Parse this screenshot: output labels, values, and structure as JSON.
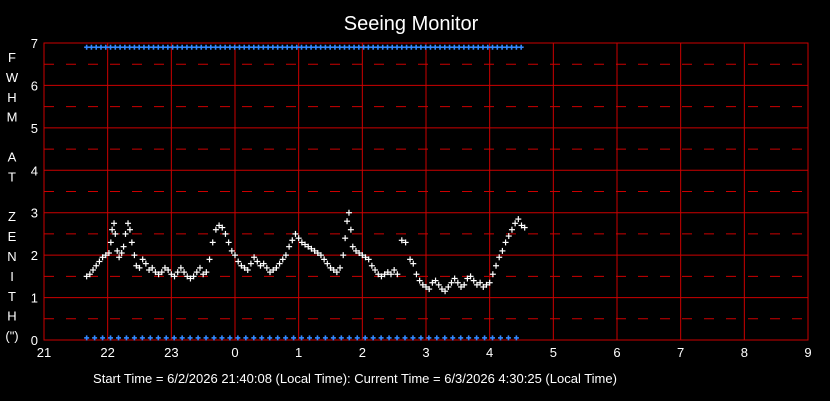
{
  "chart_data": {
    "type": "scatter",
    "title": "Seeing Monitor",
    "ylabel_letters": [
      "F",
      "W",
      "H",
      "M",
      "",
      "A",
      "T",
      "",
      "Z",
      "E",
      "N",
      "I",
      "T",
      "H",
      "(\")"
    ],
    "footer": "Start Time = 6/2/2026 21:40:08 (Local Time): Current Time = 6/3/2026 4:30:25 (Local Time)",
    "xlim": [
      21,
      33
    ],
    "ylim": [
      0,
      7
    ],
    "x_tick_values": [
      21,
      22,
      23,
      24,
      25,
      26,
      27,
      28,
      29,
      30,
      31,
      32,
      33
    ],
    "x_tick_labels": [
      "21",
      "22",
      "23",
      "0",
      "1",
      "2",
      "3",
      "4",
      "5",
      "6",
      "7",
      "8",
      "9"
    ],
    "y_ticks": [
      "0",
      "1",
      "2",
      "3",
      "4",
      "5",
      "6",
      "7"
    ],
    "grid": true,
    "colors": {
      "background": "#000000",
      "grid": "#cc0000",
      "data": "#ffffff",
      "status": "#3388ff"
    },
    "series": [
      {
        "marker": "plus",
        "points": [
          [
            21.67,
            1.5
          ],
          [
            21.72,
            1.55
          ],
          [
            21.77,
            1.65
          ],
          [
            21.82,
            1.75
          ],
          [
            21.87,
            1.85
          ],
          [
            21.92,
            1.95
          ],
          [
            21.97,
            2.0
          ],
          [
            22.02,
            2.05
          ],
          [
            22.05,
            2.3
          ],
          [
            22.07,
            2.6
          ],
          [
            22.1,
            2.75
          ],
          [
            22.12,
            2.5
          ],
          [
            22.15,
            2.1
          ],
          [
            22.18,
            1.95
          ],
          [
            22.22,
            2.05
          ],
          [
            22.25,
            2.2
          ],
          [
            22.28,
            2.5
          ],
          [
            22.32,
            2.75
          ],
          [
            22.35,
            2.6
          ],
          [
            22.38,
            2.3
          ],
          [
            22.42,
            2.0
          ],
          [
            22.45,
            1.75
          ],
          [
            22.5,
            1.7
          ],
          [
            22.55,
            1.9
          ],
          [
            22.6,
            1.8
          ],
          [
            22.65,
            1.65
          ],
          [
            22.7,
            1.7
          ],
          [
            22.75,
            1.6
          ],
          [
            22.8,
            1.55
          ],
          [
            22.85,
            1.6
          ],
          [
            22.9,
            1.7
          ],
          [
            22.95,
            1.65
          ],
          [
            23.0,
            1.55
          ],
          [
            23.05,
            1.5
          ],
          [
            23.1,
            1.6
          ],
          [
            23.15,
            1.7
          ],
          [
            23.2,
            1.6
          ],
          [
            23.25,
            1.5
          ],
          [
            23.3,
            1.45
          ],
          [
            23.35,
            1.5
          ],
          [
            23.4,
            1.6
          ],
          [
            23.45,
            1.7
          ],
          [
            23.5,
            1.55
          ],
          [
            23.55,
            1.6
          ],
          [
            23.6,
            1.9
          ],
          [
            23.65,
            2.3
          ],
          [
            23.7,
            2.6
          ],
          [
            23.75,
            2.7
          ],
          [
            23.8,
            2.65
          ],
          [
            23.85,
            2.5
          ],
          [
            23.9,
            2.3
          ],
          [
            23.95,
            2.1
          ],
          [
            24.0,
            2.0
          ],
          [
            24.05,
            1.85
          ],
          [
            24.1,
            1.75
          ],
          [
            24.15,
            1.7
          ],
          [
            24.2,
            1.65
          ],
          [
            24.25,
            1.8
          ],
          [
            24.3,
            1.95
          ],
          [
            24.35,
            1.85
          ],
          [
            24.4,
            1.75
          ],
          [
            24.45,
            1.8
          ],
          [
            24.5,
            1.7
          ],
          [
            24.55,
            1.6
          ],
          [
            24.6,
            1.65
          ],
          [
            24.65,
            1.7
          ],
          [
            24.7,
            1.8
          ],
          [
            24.75,
            1.9
          ],
          [
            24.8,
            2.0
          ],
          [
            24.85,
            2.2
          ],
          [
            24.9,
            2.35
          ],
          [
            24.95,
            2.5
          ],
          [
            25.0,
            2.4
          ],
          [
            25.05,
            2.3
          ],
          [
            25.1,
            2.25
          ],
          [
            25.15,
            2.2
          ],
          [
            25.2,
            2.15
          ],
          [
            25.25,
            2.1
          ],
          [
            25.3,
            2.05
          ],
          [
            25.35,
            2.0
          ],
          [
            25.4,
            1.9
          ],
          [
            25.45,
            1.8
          ],
          [
            25.5,
            1.7
          ],
          [
            25.55,
            1.65
          ],
          [
            25.6,
            1.6
          ],
          [
            25.65,
            1.7
          ],
          [
            25.7,
            2.0
          ],
          [
            25.73,
            2.4
          ],
          [
            25.76,
            2.8
          ],
          [
            25.79,
            3.0
          ],
          [
            25.82,
            2.6
          ],
          [
            25.85,
            2.2
          ],
          [
            25.9,
            2.1
          ],
          [
            25.95,
            2.05
          ],
          [
            26.0,
            2.0
          ],
          [
            26.05,
            1.95
          ],
          [
            26.1,
            1.9
          ],
          [
            26.15,
            1.75
          ],
          [
            26.2,
            1.65
          ],
          [
            26.25,
            1.55
          ],
          [
            26.3,
            1.5
          ],
          [
            26.35,
            1.55
          ],
          [
            26.4,
            1.6
          ],
          [
            26.45,
            1.55
          ],
          [
            26.5,
            1.65
          ],
          [
            26.55,
            1.55
          ],
          [
            26.62,
            2.35
          ],
          [
            26.68,
            2.3
          ],
          [
            26.75,
            1.9
          ],
          [
            26.8,
            1.8
          ],
          [
            26.85,
            1.55
          ],
          [
            26.9,
            1.4
          ],
          [
            26.95,
            1.3
          ],
          [
            27.0,
            1.25
          ],
          [
            27.05,
            1.2
          ],
          [
            27.1,
            1.35
          ],
          [
            27.15,
            1.4
          ],
          [
            27.2,
            1.3
          ],
          [
            27.25,
            1.2
          ],
          [
            27.3,
            1.15
          ],
          [
            27.35,
            1.25
          ],
          [
            27.4,
            1.35
          ],
          [
            27.45,
            1.45
          ],
          [
            27.5,
            1.35
          ],
          [
            27.55,
            1.25
          ],
          [
            27.6,
            1.3
          ],
          [
            27.65,
            1.45
          ],
          [
            27.7,
            1.5
          ],
          [
            27.75,
            1.4
          ],
          [
            27.8,
            1.3
          ],
          [
            27.85,
            1.35
          ],
          [
            27.9,
            1.25
          ],
          [
            27.95,
            1.3
          ],
          [
            28.0,
            1.35
          ],
          [
            28.05,
            1.55
          ],
          [
            28.1,
            1.75
          ],
          [
            28.15,
            1.95
          ],
          [
            28.2,
            2.1
          ],
          [
            28.25,
            2.3
          ],
          [
            28.3,
            2.45
          ],
          [
            28.35,
            2.6
          ],
          [
            28.4,
            2.75
          ],
          [
            28.45,
            2.85
          ],
          [
            28.5,
            2.7
          ],
          [
            28.55,
            2.65
          ]
        ]
      }
    ],
    "status_top": {
      "y": 6.9,
      "x_start": 21.67,
      "x_end": 28.55,
      "step": 0.075
    },
    "status_bottom": {
      "y": 0.05,
      "x_start": 21.67,
      "x_end": 28.5,
      "step": 0.125
    }
  }
}
